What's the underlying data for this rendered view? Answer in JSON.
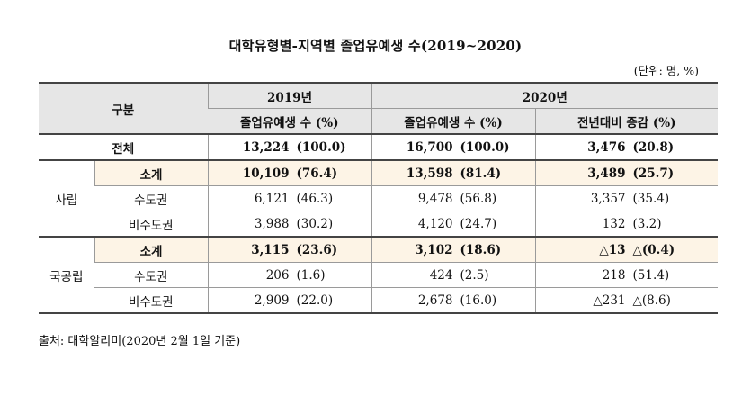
{
  "title": "대학유형별-지역별 졸업유예생 수(2019~2020)",
  "unit": "(단위: 명, %)",
  "header": {
    "category": "구분",
    "year2019": "2019년",
    "year2020": "2020년",
    "col_2019": "졸업유예생 수 (%)",
    "col_2020": "졸업유예생 수 (%)",
    "col_change": "전년대비 증감 (%)"
  },
  "rows": {
    "total": {
      "label": "전체",
      "v2019": "13,224",
      "p2019": "(100.0)",
      "v2020": "16,700",
      "p2020": "(100.0)",
      "chg": "3,476",
      "pchg": "(20.8)"
    },
    "private": {
      "group": "사립",
      "subtotal": {
        "label": "소계",
        "v2019": "10,109",
        "p2019": "(76.4)",
        "v2020": "13,598",
        "p2020": "(81.4)",
        "chg": "3,489",
        "pchg": "(25.7)"
      },
      "capital": {
        "label": "수도권",
        "v2019": "6,121",
        "p2019": "(46.3)",
        "v2020": "9,478",
        "p2020": "(56.8)",
        "chg": "3,357",
        "pchg": "(35.4)"
      },
      "noncapital": {
        "label": "비수도권",
        "v2019": "3,988",
        "p2019": "(30.2)",
        "v2020": "4,120",
        "p2020": "(24.7)",
        "chg": "132",
        "pchg": "(3.2)"
      }
    },
    "public": {
      "group": "국공립",
      "subtotal": {
        "label": "소계",
        "v2019": "3,115",
        "p2019": "(23.6)",
        "v2020": "3,102",
        "p2020": "(18.6)",
        "chg": "△13",
        "pchg": "△(0.4)"
      },
      "capital": {
        "label": "수도권",
        "v2019": "206",
        "p2019": "(1.6)",
        "v2020": "424",
        "p2020": "(2.5)",
        "chg": "218",
        "pchg": "(51.4)"
      },
      "noncapital": {
        "label": "비수도권",
        "v2019": "2,909",
        "p2019": "(22.0)",
        "v2020": "2,678",
        "p2020": "(16.0)",
        "chg": "△231",
        "pchg": "△(8.6)"
      }
    }
  },
  "source": "출처: 대학알리미(2020년 2월 1일 기준)"
}
